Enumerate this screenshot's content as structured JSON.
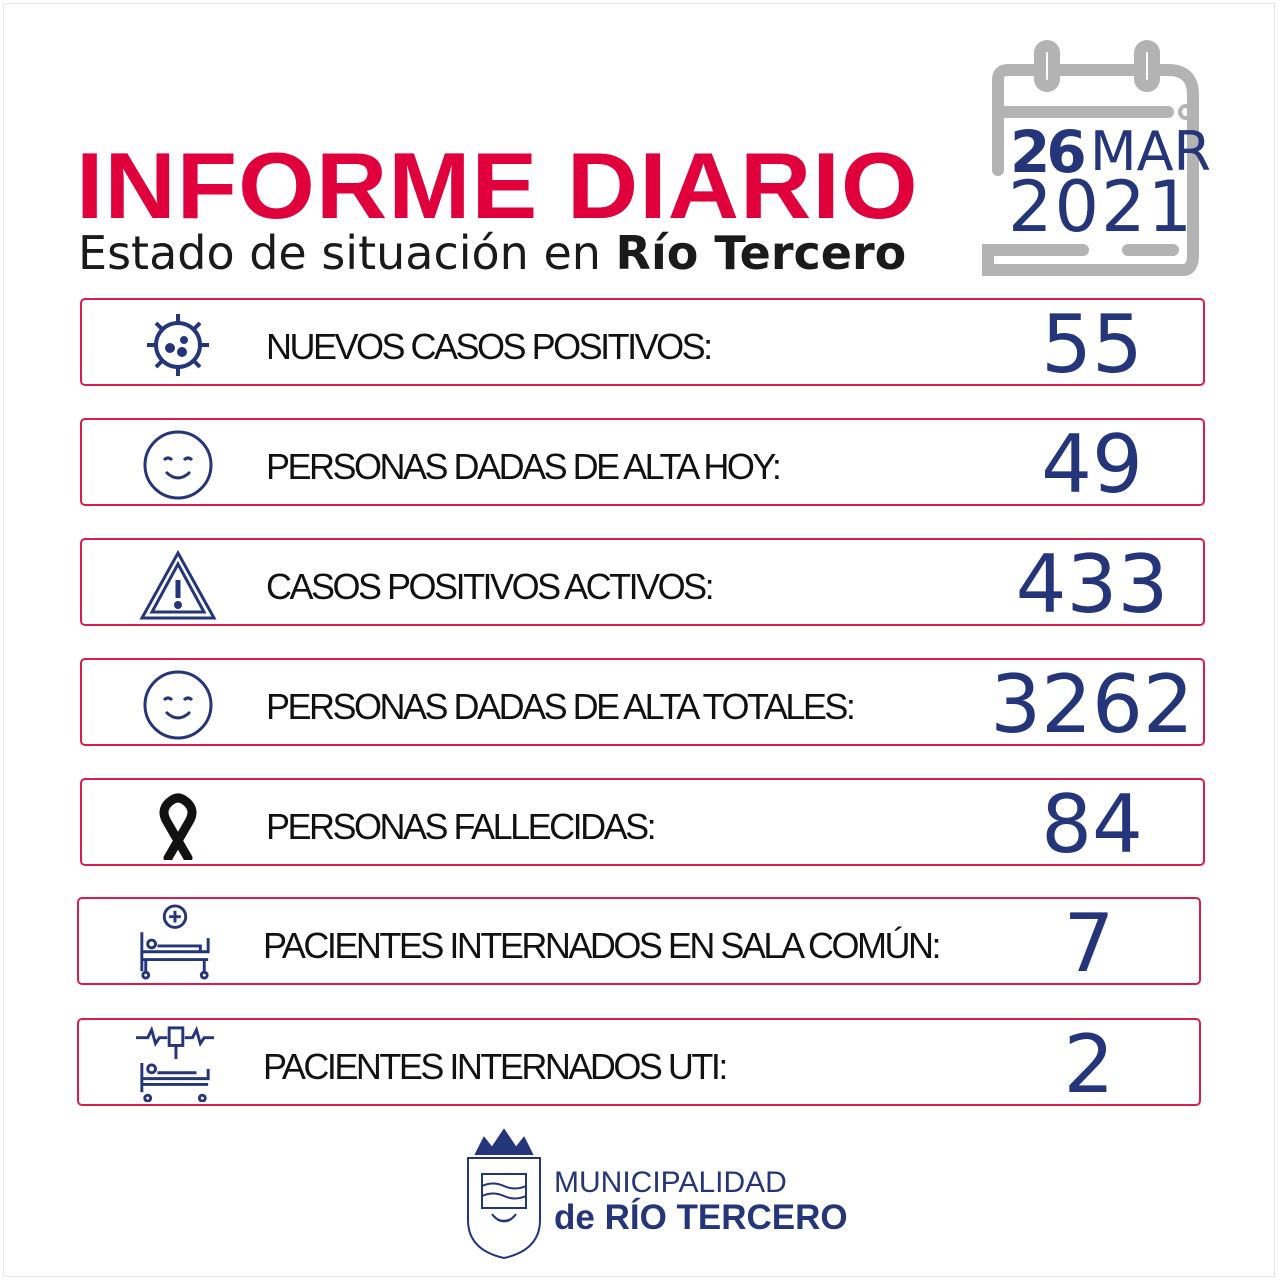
{
  "header": {
    "title": "INFORME DIARIO",
    "subtitle_prefix": "Estado de situación en ",
    "subtitle_place": "Río Tercero"
  },
  "date": {
    "day": "26",
    "month": "MAR",
    "year": "2021"
  },
  "colors": {
    "accent": "#e0003c",
    "navy": "#24357a",
    "calendar": "#b3b3b3"
  },
  "stats": [
    {
      "label": "NUEVOS CASOS POSITIVOS:",
      "value": "55",
      "icon": "virus-icon"
    },
    {
      "label": "PERSONAS DADAS DE ALTA HOY:",
      "value": "49",
      "icon": "smiley-icon"
    },
    {
      "label": "CASOS POSITIVOS ACTIVOS:",
      "value": "433",
      "icon": "warning-icon"
    },
    {
      "label": "PERSONAS DADAS DE ALTA TOTALES:",
      "value": "3262",
      "icon": "smiley-icon"
    },
    {
      "label": "PERSONAS FALLECIDAS:",
      "value": "84",
      "icon": "mourning-ribbon-icon"
    },
    {
      "label": "PACIENTES INTERNADOS EN SALA COMÚN:",
      "value": "7",
      "icon": "hospital-bed-icon"
    },
    {
      "label": "PACIENTES INTERNADOS UTI:",
      "value": "2",
      "icon": "icu-bed-icon"
    }
  ],
  "footer": {
    "line1": "MUNICIPALIDAD",
    "line2": "de RÍO TERCERO"
  }
}
